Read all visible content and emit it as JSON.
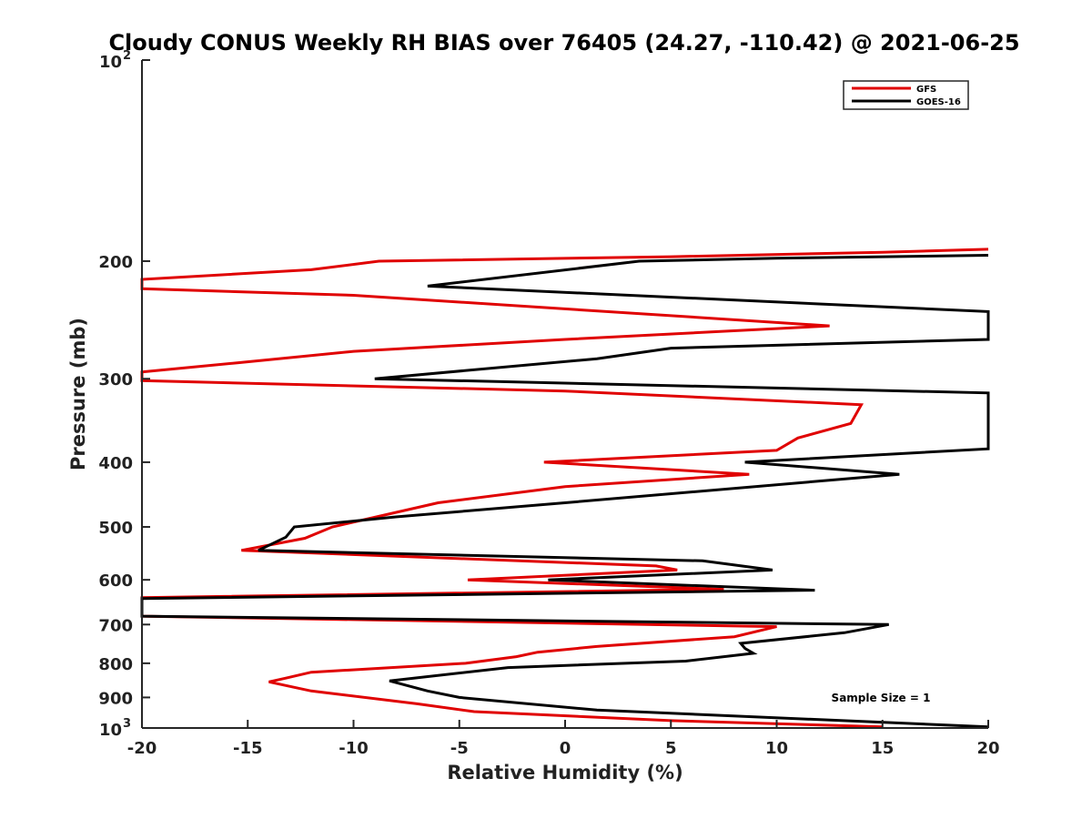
{
  "chart_data": {
    "type": "line",
    "title": "Cloudy CONUS Weekly RH BIAS over 76405 (24.27, -110.42) @ 2021-06-25",
    "xlabel": "Relative Humidity (%)",
    "ylabel": "Pressure (mb)",
    "xlim": [
      -20,
      20
    ],
    "ylim": [
      100,
      1000
    ],
    "y_scale": "log",
    "y_reversed": true,
    "x_ticks": [
      "-20",
      "-15",
      "-10",
      "-5",
      "0",
      "5",
      "10",
      "15",
      "20"
    ],
    "y_ticks": [
      {
        "value": 100,
        "base": "10",
        "exp": "2"
      },
      {
        "value": 200,
        "label": "200"
      },
      {
        "value": 300,
        "label": "300"
      },
      {
        "value": 400,
        "label": "400"
      },
      {
        "value": 500,
        "label": "500"
      },
      {
        "value": 600,
        "label": "600"
      },
      {
        "value": 700,
        "label": "700"
      },
      {
        "value": 800,
        "label": "800"
      },
      {
        "value": 900,
        "label": "900"
      },
      {
        "value": 1000,
        "base": "10",
        "exp": "3"
      }
    ],
    "grid": false,
    "legend_position": "top-right",
    "annotation": "Sample Size = 1",
    "series": [
      {
        "name": "GFS",
        "color": "#e00000",
        "points": [
          [
            20,
            192
          ],
          [
            15,
            194
          ],
          [
            5,
            197
          ],
          [
            -8.8,
            200
          ],
          [
            -12,
            206
          ],
          [
            -20,
            213
          ],
          [
            -20,
            220
          ],
          [
            -10,
            225
          ],
          [
            12.5,
            250
          ],
          [
            0,
            262
          ],
          [
            -10,
            273
          ],
          [
            -15.5,
            284
          ],
          [
            -20,
            293
          ],
          [
            -20,
            302
          ],
          [
            0,
            313
          ],
          [
            14,
            328
          ],
          [
            13.5,
            350
          ],
          [
            11,
            368
          ],
          [
            10,
            384
          ],
          [
            -1,
            400
          ],
          [
            8.7,
            417
          ],
          [
            0,
            435
          ],
          [
            -6,
            460
          ],
          [
            -11,
            500
          ],
          [
            -12.3,
            520
          ],
          [
            -15.3,
            542
          ],
          [
            4.3,
            572
          ],
          [
            5.3,
            580
          ],
          [
            -4.6,
            600
          ],
          [
            7.5,
            620
          ],
          [
            -20,
            638
          ],
          [
            -20,
            680
          ],
          [
            10,
            705
          ],
          [
            8,
            730
          ],
          [
            1.5,
            755
          ],
          [
            -1.3,
            770
          ],
          [
            -2.3,
            782
          ],
          [
            -4.7,
            800
          ],
          [
            -12,
            825
          ],
          [
            -13.2,
            842
          ],
          [
            -14,
            853
          ],
          [
            -12,
            880
          ],
          [
            -7,
            920
          ],
          [
            -4.3,
            945
          ],
          [
            5,
            975
          ],
          [
            15,
            996
          ]
        ]
      },
      {
        "name": "GOES-16",
        "color": "#000000",
        "points": [
          [
            20,
            196
          ],
          [
            10,
            198
          ],
          [
            3.5,
            200
          ],
          [
            -6.5,
            218
          ],
          [
            20,
            238
          ],
          [
            20,
            262
          ],
          [
            5,
            270
          ],
          [
            1.5,
            280
          ],
          [
            -9,
            300
          ],
          [
            20,
            315
          ],
          [
            20,
            382
          ],
          [
            8.5,
            400
          ],
          [
            15.8,
            417
          ],
          [
            0,
            460
          ],
          [
            -8,
            483
          ],
          [
            -12.8,
            500
          ],
          [
            -13.2,
            518
          ],
          [
            -14.5,
            542
          ],
          [
            6.5,
            562
          ],
          [
            9.8,
            580
          ],
          [
            -0.8,
            600
          ],
          [
            11.8,
            622
          ],
          [
            -20,
            640
          ],
          [
            -20,
            680
          ],
          [
            15.3,
            700
          ],
          [
            13.2,
            720
          ],
          [
            8.3,
            747
          ],
          [
            8.5,
            760
          ],
          [
            8.9,
            773
          ],
          [
            5.7,
            794
          ],
          [
            -2.7,
            812
          ],
          [
            -8.3,
            850
          ],
          [
            -6.5,
            880
          ],
          [
            -5,
            900
          ],
          [
            1.5,
            940
          ],
          [
            20,
            996
          ]
        ]
      }
    ]
  }
}
